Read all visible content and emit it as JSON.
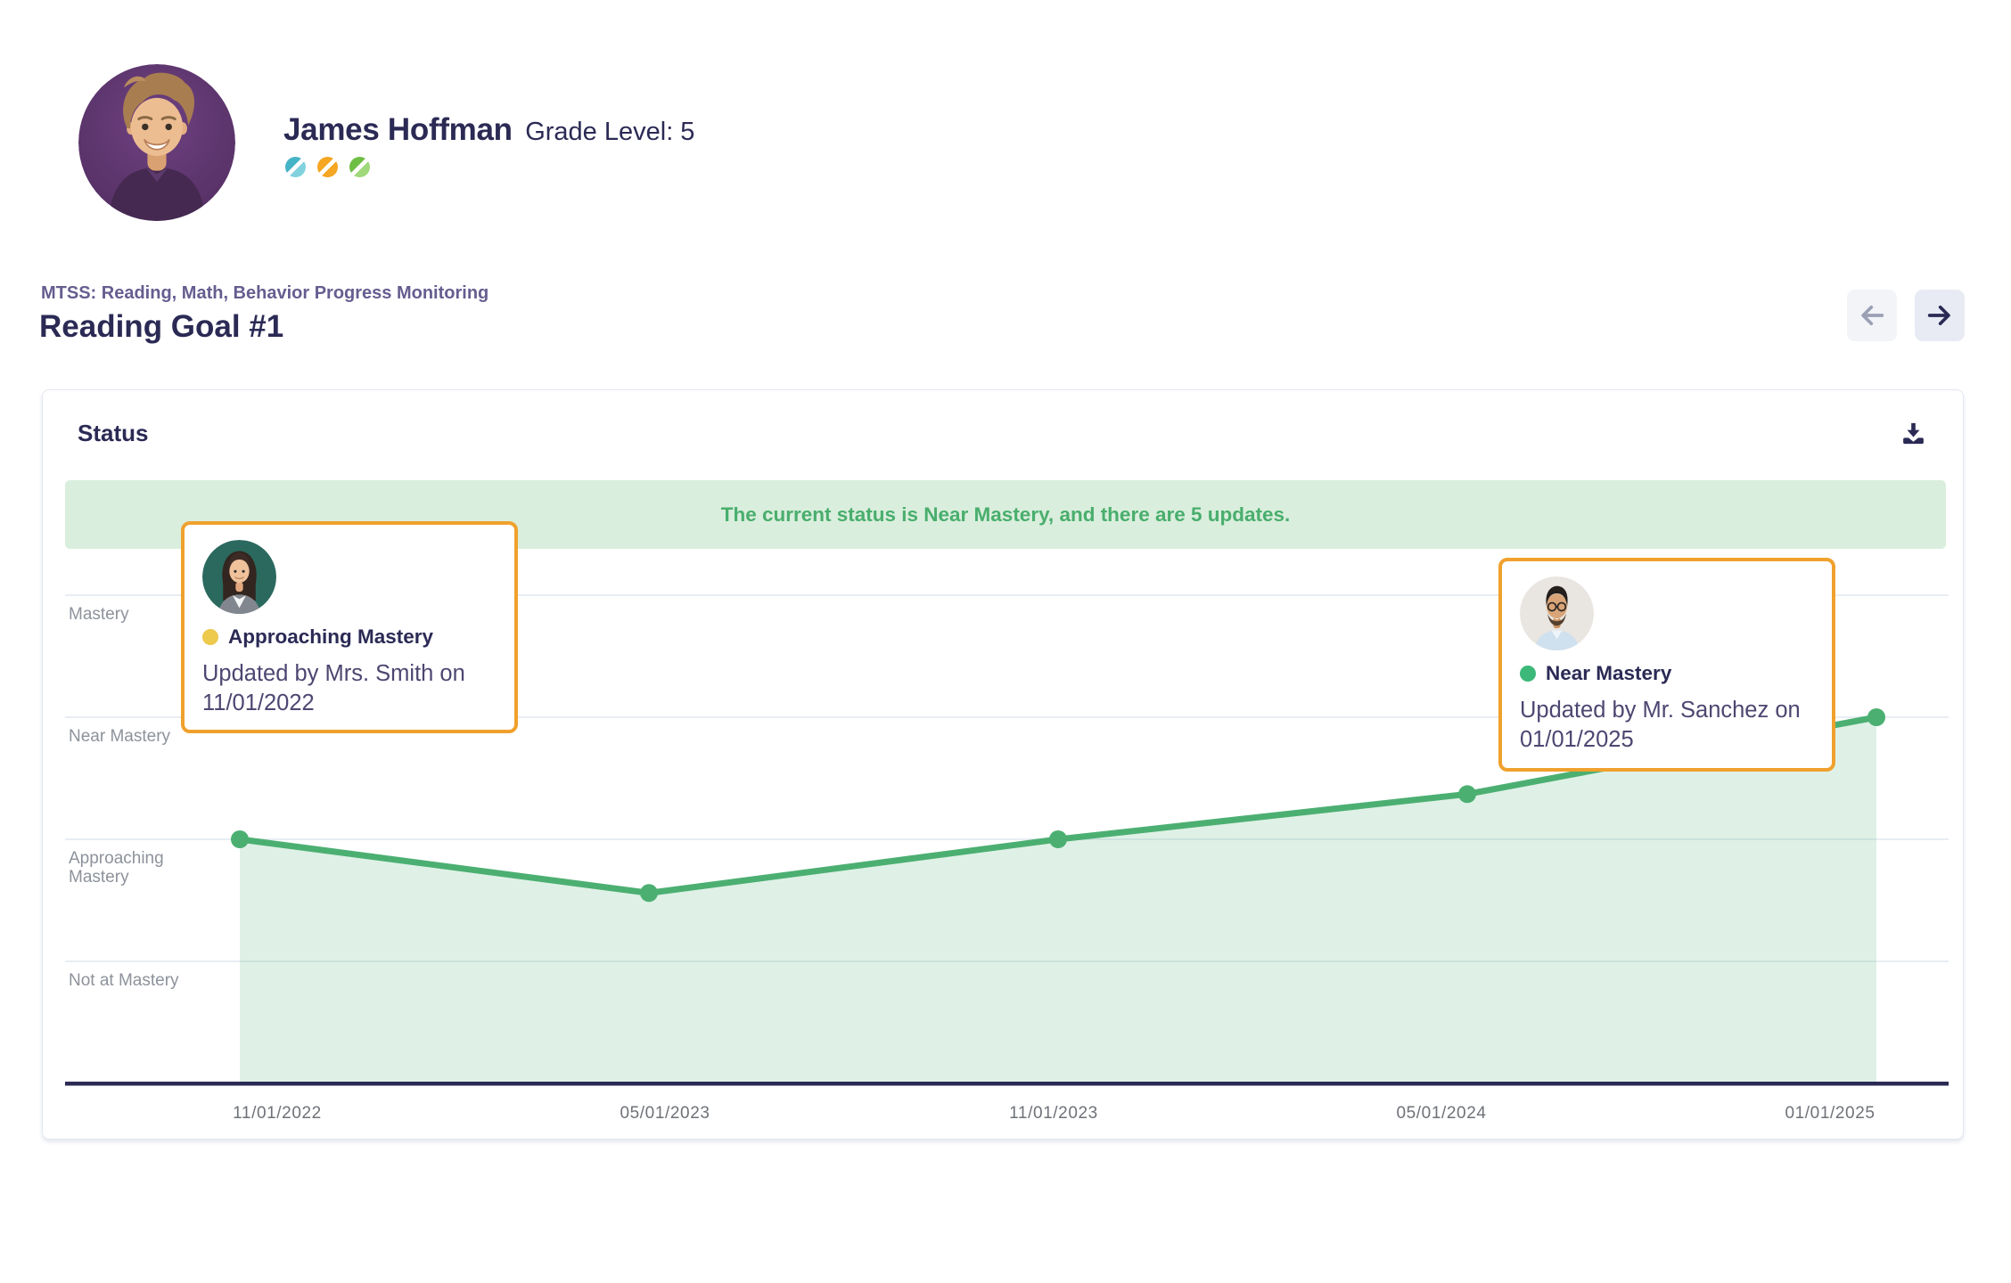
{
  "student": {
    "name": "James Hoffman",
    "grade_label": "Grade Level: 5",
    "subject_icons": [
      {
        "name": "subject-reading",
        "color": "#45b4c6",
        "color_light": "#82d2de"
      },
      {
        "name": "subject-math",
        "color": "#f5a623",
        "color_light": "#f9c express"
      },
      {
        "name": "subject-behavior",
        "color": "#6fbe44",
        "color_light": "#a0d87c"
      }
    ]
  },
  "page": {
    "breadcrumb": "MTSS: Reading, Math, Behavior Progress Monitoring",
    "title": "Reading Goal #1"
  },
  "card": {
    "header": "Status",
    "banner": {
      "prefix": "The current status is ",
      "status_bold": "Near Mastery,",
      "middle": " and there are ",
      "count_bold": "5",
      "suffix": " updates.",
      "bg_color": "#daeedd",
      "text_color": "#49ae6d"
    }
  },
  "tooltips": [
    {
      "status": "Approaching Mastery",
      "status_color": "#edc94c",
      "updated_text": "Updated by Mrs. Smith on 11/01/2022",
      "avatar": "mrs-smith-avatar"
    },
    {
      "status": "Near Mastery",
      "status_color": "#3cb878",
      "updated_text": "Updated by Mr. Sanchez on 01/01/2025",
      "avatar": "mr-sanchez-avatar"
    }
  ],
  "chart_data": {
    "type": "line",
    "title": "Reading Goal #1 status over time",
    "x": [
      "11/01/2022",
      "05/01/2023",
      "11/01/2023",
      "05/01/2024",
      "01/01/2025"
    ],
    "y_tick_labels": [
      "Mastery",
      "Near Mastery",
      "Approaching Mastery",
      "Not at Mastery"
    ],
    "level_scale": {
      "Not at Mastery": 0,
      "Approaching Mastery": 1,
      "Near Mastery": 2,
      "Mastery": 3
    },
    "values": [
      1.0,
      0.56,
      1.0,
      1.37,
      2.0
    ],
    "point_annotations": [
      {
        "x": "11/01/2022",
        "status": "Approaching Mastery",
        "updated_by": "Mrs. Smith"
      },
      {
        "x": "01/01/2025",
        "status": "Near Mastery",
        "updated_by": "Mr. Sanchez"
      }
    ],
    "ylim": [
      -1,
      3.5
    ],
    "grid": true,
    "legend": false,
    "line_color": "#4caf72",
    "point_color": "#4caf72",
    "area_color": "rgba(76,175,114,0.18)",
    "grid_color": "#e8edf3",
    "axis_color": "#2b2a55"
  }
}
